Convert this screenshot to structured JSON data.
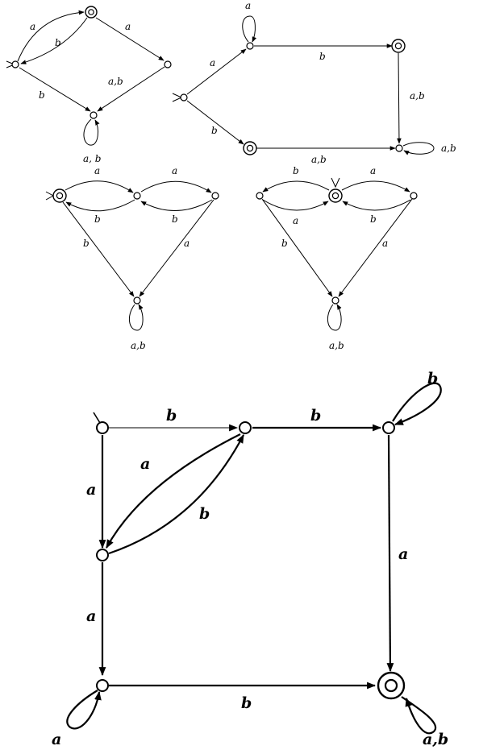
{
  "figure": {
    "diagrams": [
      {
        "id": "d1",
        "edge_labels": [
          "a",
          "b",
          "a",
          "a,b",
          "b"
        ],
        "loop_label": "a, b"
      },
      {
        "id": "d2",
        "edge_labels": [
          "a",
          "b",
          "b",
          "a,b",
          "a,b"
        ],
        "loop_labels": [
          "a",
          "a,b"
        ]
      },
      {
        "id": "d3",
        "edge_labels": [
          "a",
          "b",
          "a",
          "b",
          "b",
          "a"
        ],
        "loop_label": "a,b"
      },
      {
        "id": "d4",
        "edge_labels": [
          "b",
          "a",
          "a",
          "b",
          "b",
          "a"
        ],
        "loop_label": "a,b"
      },
      {
        "id": "d5",
        "edge_labels": [
          "b",
          "b",
          "a",
          "b",
          "a",
          "a",
          "a",
          "b"
        ],
        "loop_labels": [
          "b",
          "a",
          "a,b"
        ]
      }
    ]
  }
}
